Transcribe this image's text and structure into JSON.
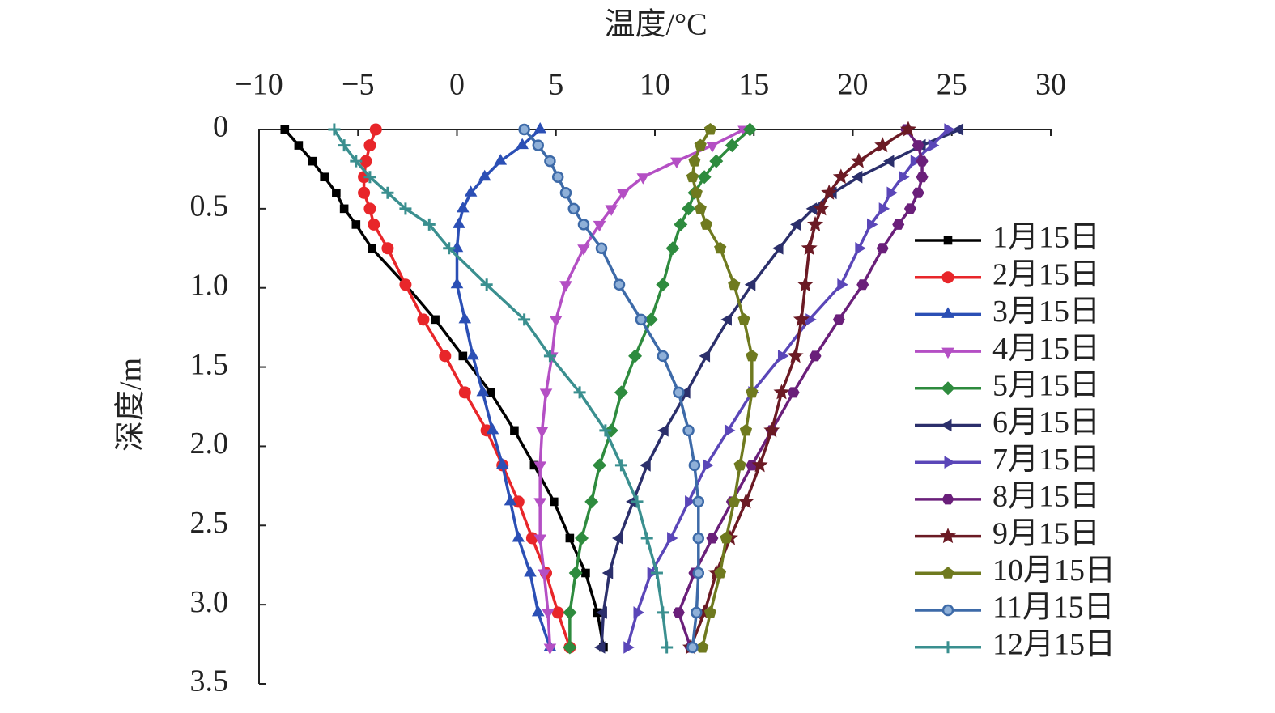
{
  "chart_data": {
    "type": "line",
    "x_label": "温度/°C",
    "y_label": "深度/m",
    "xlim": [
      -10,
      30
    ],
    "xticks": [
      {
        "value": -10,
        "label": "−10"
      },
      {
        "value": -5,
        "label": "−5"
      },
      0,
      5,
      10,
      15,
      20,
      25,
      30
    ],
    "ylim": [
      0,
      3.5
    ],
    "yticks": [
      0,
      0.5,
      {
        "value": 1.0,
        "label": "1.0"
      },
      1.5,
      {
        "value": 2.0,
        "label": "2.0"
      },
      2.5,
      {
        "value": 3.0,
        "label": "3.0"
      },
      3.5
    ],
    "y_inverted": true,
    "x_axis_position": "top",
    "grid": false,
    "legend": "right",
    "y": [
      0,
      0.1,
      0.2,
      0.3,
      0.4,
      0.5,
      0.6,
      0.75,
      0.98,
      1.2,
      1.43,
      1.66,
      1.9,
      2.12,
      2.35,
      2.58,
      2.8,
      3.05,
      3.27
    ],
    "series": [
      {
        "name": "1月15日",
        "color": "#000000",
        "marker": "square",
        "x": [
          -8.7,
          -8.0,
          -7.3,
          -6.7,
          -6.1,
          -5.7,
          -5.1,
          -4.3,
          -2.6,
          -1.1,
          0.3,
          1.7,
          2.9,
          3.9,
          4.9,
          5.7,
          6.5,
          7.1,
          7.4
        ]
      },
      {
        "name": "2月15日",
        "color": "#e8262a",
        "marker": "circle",
        "x": [
          -4.1,
          -4.4,
          -4.6,
          -4.7,
          -4.7,
          -4.4,
          -4.2,
          -3.5,
          -2.6,
          -1.7,
          -0.6,
          0.4,
          1.5,
          2.3,
          3.1,
          3.8,
          4.5,
          5.1,
          5.7
        ]
      },
      {
        "name": "3月15日",
        "color": "#2b4fb5",
        "marker": "triangle-up",
        "x": [
          4.2,
          3.3,
          2.2,
          1.4,
          0.7,
          0.3,
          0.1,
          0.0,
          0.0,
          0.4,
          0.8,
          1.3,
          1.8,
          2.3,
          2.7,
          3.1,
          3.7,
          4.1,
          4.7
        ]
      },
      {
        "name": "4月15日",
        "color": "#b44fc4",
        "marker": "triangle-down",
        "x": [
          14.5,
          12.9,
          11.1,
          9.4,
          8.4,
          7.8,
          7.2,
          6.4,
          5.5,
          5.0,
          4.8,
          4.5,
          4.3,
          4.2,
          4.2,
          4.2,
          4.4,
          4.6,
          4.7
        ]
      },
      {
        "name": "5月15日",
        "color": "#2e8b3e",
        "marker": "diamond",
        "x": [
          14.8,
          13.9,
          13.1,
          12.5,
          12.0,
          11.7,
          11.3,
          10.9,
          10.4,
          9.8,
          9.0,
          8.3,
          7.8,
          7.2,
          6.8,
          6.3,
          6.0,
          5.7,
          5.7
        ]
      },
      {
        "name": "6月15日",
        "color": "#2b2f6b",
        "marker": "triangle-left",
        "x": [
          25.4,
          23.5,
          21.9,
          20.3,
          19.0,
          18.0,
          17.2,
          16.3,
          14.9,
          13.7,
          12.6,
          11.6,
          10.5,
          9.6,
          8.9,
          8.2,
          7.7,
          7.4,
          7.3
        ]
      },
      {
        "name": "7月15日",
        "color": "#5a46b8",
        "marker": "triangle-right",
        "x": [
          24.8,
          24.0,
          23.1,
          22.5,
          21.9,
          21.5,
          20.9,
          20.3,
          19.4,
          17.8,
          16.4,
          14.9,
          13.7,
          12.6,
          11.7,
          10.8,
          9.8,
          9.1,
          8.6
        ]
      },
      {
        "name": "8月15日",
        "color": "#6a1f7a",
        "marker": "hexagon",
        "x": [
          22.7,
          23.3,
          23.5,
          23.5,
          23.3,
          22.9,
          22.3,
          21.5,
          20.5,
          19.3,
          18.1,
          17.0,
          15.9,
          14.9,
          13.9,
          12.9,
          12.0,
          11.2,
          11.8
        ]
      },
      {
        "name": "9月15日",
        "color": "#6b1a24",
        "marker": "star",
        "x": [
          22.8,
          21.5,
          20.3,
          19.4,
          18.8,
          18.4,
          18.1,
          17.8,
          17.6,
          17.4,
          17.1,
          16.4,
          15.9,
          15.3,
          14.6,
          13.8,
          13.1,
          12.5,
          11.8
        ]
      },
      {
        "name": "10月15日",
        "color": "#6f7a1f",
        "marker": "pentagon",
        "x": [
          12.8,
          12.3,
          12.0,
          11.9,
          12.1,
          12.3,
          12.6,
          13.3,
          14.0,
          14.5,
          14.9,
          14.9,
          14.6,
          14.3,
          14.0,
          13.6,
          13.3,
          12.8,
          12.4
        ]
      },
      {
        "name": "11月15日",
        "color": "#3d6aa8",
        "marker": "ring",
        "x": [
          3.4,
          4.1,
          4.7,
          5.1,
          5.5,
          5.9,
          6.4,
          7.3,
          8.2,
          9.3,
          10.4,
          11.2,
          11.7,
          12.0,
          12.2,
          12.2,
          12.2,
          12.1,
          11.9
        ]
      },
      {
        "name": "12月15日",
        "color": "#3a8f8f",
        "marker": "plus",
        "x": [
          -6.2,
          -5.7,
          -5.1,
          -4.4,
          -3.5,
          -2.6,
          -1.4,
          -0.4,
          1.5,
          3.4,
          4.7,
          6.2,
          7.5,
          8.3,
          9.1,
          9.6,
          10.1,
          10.4,
          10.6
        ]
      }
    ]
  }
}
